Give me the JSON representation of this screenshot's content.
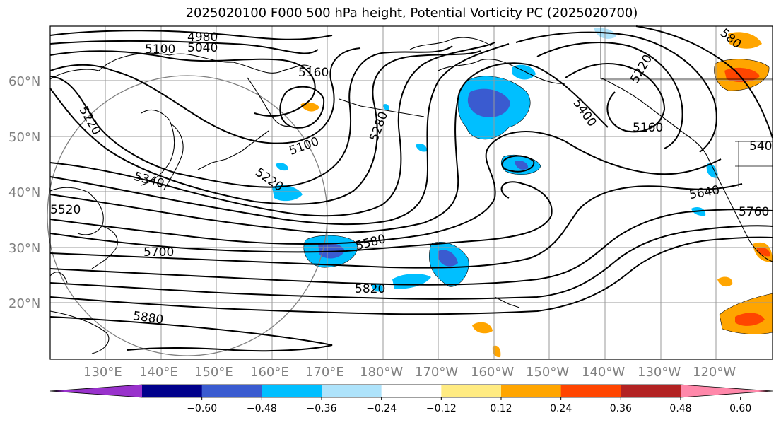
{
  "title": "2025020100 F000 500 hPa height, Potential Vorticity PC (2025020700)",
  "lat_labels": [
    "60°N",
    "50°N",
    "40°N",
    "30°N",
    "20°N"
  ],
  "lon_labels": [
    "130°E",
    "140°E",
    "150°E",
    "160°E",
    "170°E",
    "180°W",
    "170°W",
    "160°W",
    "150°W",
    "140°W",
    "130°W",
    "120°W"
  ],
  "contour_labels": [
    "4980",
    "5040",
    "5100",
    "5160",
    "5220",
    "5280",
    "5400",
    "5160",
    "5100",
    "5220",
    "5340",
    "5220",
    "5520",
    "5580",
    "5700",
    "5820",
    "5880",
    "5640",
    "5760",
    "540",
    "580"
  ],
  "colorbar": {
    "tick_labels": [
      "−0.60",
      "−0.48",
      "−0.36",
      "−0.24",
      "−0.12",
      "0.12",
      "0.24",
      "0.36",
      "0.48",
      "0.60"
    ],
    "colors": [
      "#9932cc",
      "#00008b",
      "#3a5bd0",
      "#00bfff",
      "#aee3fb",
      "#ffffff",
      "#ffeb82",
      "#ffa500",
      "#ff4500",
      "#b22222",
      "#ff88aa"
    ]
  }
}
